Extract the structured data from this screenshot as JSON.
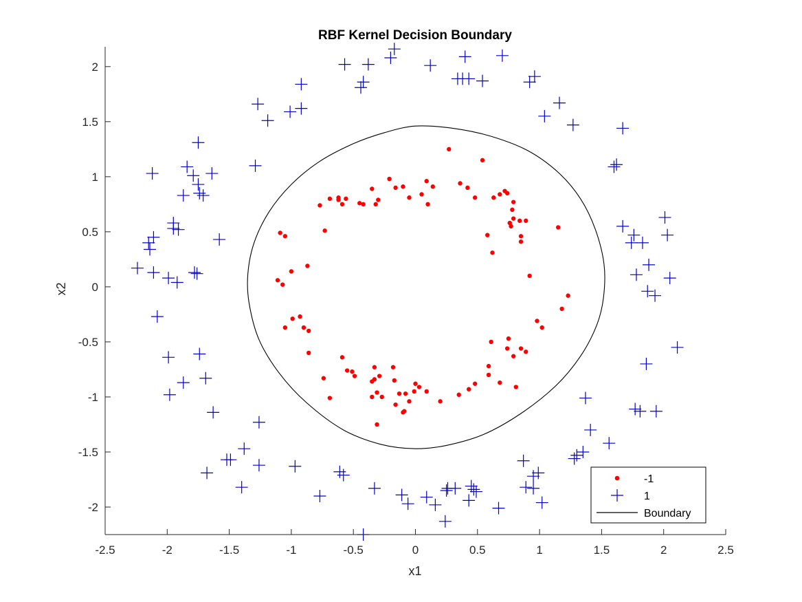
{
  "chart_data": {
    "type": "scatter",
    "title": "RBF Kernel Decision Boundary",
    "xlabel": "x1",
    "ylabel": "x2",
    "xlim": [
      -2.5,
      2.5
    ],
    "ylim": [
      -2.25,
      2.18
    ],
    "xticks": [
      "-2.5",
      "-2",
      "-1.5",
      "-1",
      "-0.5",
      "0",
      "0.5",
      "1",
      "1.5",
      "2",
      "2.5"
    ],
    "xtick_values": [
      -2.5,
      -2,
      -1.5,
      -1,
      -0.5,
      0,
      0.5,
      1,
      1.5,
      2,
      2.5
    ],
    "yticks": [
      "-2",
      "-1.5",
      "-1",
      "-0.5",
      "0",
      "0.5",
      "1",
      "1.5",
      "2"
    ],
    "ytick_values": [
      -2,
      -1.5,
      -1,
      -0.5,
      0,
      0.5,
      1,
      1.5,
      2
    ],
    "grid": false,
    "legend_position": "bottom-right",
    "legend": [
      "-1",
      "1",
      "Boundary"
    ],
    "colors": {
      "neg": "#ff0000",
      "pos": "#0000cc",
      "boundary": "#000000"
    },
    "series": [
      {
        "name": "-1",
        "marker": "dot",
        "points": [
          [
            0.27,
            1.25
          ],
          [
            0.54,
            1.15
          ],
          [
            -0.21,
            0.98
          ],
          [
            -0.35,
            0.89
          ],
          [
            -0.16,
            0.9
          ],
          [
            -0.1,
            0.91
          ],
          [
            0.09,
            0.96
          ],
          [
            0.14,
            0.91
          ],
          [
            0.36,
            0.94
          ],
          [
            0.42,
            0.9
          ],
          [
            0.48,
            0.81
          ],
          [
            0.63,
            0.81
          ],
          [
            0.68,
            0.84
          ],
          [
            0.74,
            0.85
          ],
          [
            0.72,
            0.87
          ],
          [
            0.79,
            0.77
          ],
          [
            0.78,
            0.7
          ],
          [
            0.79,
            0.62
          ],
          [
            0.84,
            0.6
          ],
          [
            0.89,
            0.6
          ],
          [
            0.76,
            0.58
          ],
          [
            0.77,
            0.55
          ],
          [
            0.85,
            0.46
          ],
          [
            0.85,
            0.41
          ],
          [
            0.58,
            0.47
          ],
          [
            0.62,
            0.31
          ],
          [
            1.15,
            0.54
          ],
          [
            0.92,
            0.1
          ],
          [
            1.23,
            -0.08
          ],
          [
            1.18,
            -0.2
          ],
          [
            0.98,
            -0.31
          ],
          [
            1.02,
            -0.37
          ],
          [
            0.75,
            -0.47
          ],
          [
            0.74,
            -0.56
          ],
          [
            0.79,
            -0.63
          ],
          [
            0.85,
            -0.56
          ],
          [
            0.89,
            -0.59
          ],
          [
            0.61,
            -0.5
          ],
          [
            0.59,
            -0.72
          ],
          [
            0.59,
            -0.8
          ],
          [
            0.81,
            -0.91
          ],
          [
            0.48,
            -0.88
          ],
          [
            0.43,
            -0.93
          ],
          [
            0.35,
            -0.98
          ],
          [
            0.2,
            -1.04
          ],
          [
            0.09,
            -0.95
          ],
          [
            0.03,
            -0.91
          ],
          [
            0.0,
            -0.88
          ],
          [
            -0.01,
            -0.95
          ],
          [
            -0.05,
            -1.04
          ],
          [
            -0.09,
            -1.13
          ],
          [
            -0.1,
            -1.14
          ],
          [
            -0.16,
            -1.07
          ],
          [
            -0.13,
            -0.97
          ],
          [
            -0.08,
            -0.97
          ],
          [
            -0.17,
            -0.85
          ],
          [
            -0.29,
            -0.81
          ],
          [
            -0.33,
            -0.84
          ],
          [
            -0.35,
            -0.86
          ],
          [
            -0.31,
            -0.96
          ],
          [
            -0.35,
            -1.0
          ],
          [
            -0.31,
            -1.25
          ],
          [
            -0.27,
            -1.0
          ],
          [
            -0.33,
            -0.73
          ],
          [
            -0.18,
            -0.73
          ],
          [
            -0.49,
            -0.81
          ],
          [
            -0.51,
            -0.77
          ],
          [
            -0.55,
            -0.76
          ],
          [
            -0.59,
            -0.64
          ],
          [
            -0.69,
            -1.01
          ],
          [
            -0.74,
            -0.83
          ],
          [
            -0.86,
            -0.6
          ],
          [
            -0.86,
            -0.4
          ],
          [
            -0.9,
            -0.37
          ],
          [
            -0.93,
            -0.27
          ],
          [
            -0.99,
            -0.29
          ],
          [
            -1.05,
            -0.37
          ],
          [
            -1.07,
            0.02
          ],
          [
            -1.0,
            0.14
          ],
          [
            -0.87,
            0.19
          ],
          [
            -1.11,
            0.06
          ],
          [
            -1.09,
            0.49
          ],
          [
            -1.05,
            0.46
          ],
          [
            -0.73,
            0.51
          ],
          [
            -0.77,
            0.74
          ],
          [
            -0.69,
            0.8
          ],
          [
            -0.62,
            0.79
          ],
          [
            -0.59,
            0.75
          ],
          [
            -0.62,
            0.81
          ],
          [
            -0.56,
            0.8
          ],
          [
            -0.42,
            0.75
          ],
          [
            -0.45,
            0.76
          ],
          [
            -0.32,
            0.75
          ],
          [
            -0.3,
            0.79
          ],
          [
            -0.05,
            0.81
          ],
          [
            0.1,
            0.75
          ],
          [
            0.05,
            0.84
          ],
          [
            0.68,
            -0.87
          ]
        ]
      },
      {
        "name": "1",
        "marker": "plus",
        "points": [
          [
            -0.17,
            2.16
          ],
          [
            -0.2,
            2.08
          ],
          [
            -0.38,
            2.02
          ],
          [
            -0.57,
            2.02
          ],
          [
            0.12,
            2.01
          ],
          [
            0.4,
            2.09
          ],
          [
            0.7,
            2.1
          ],
          [
            -0.42,
            1.86
          ],
          [
            -0.44,
            1.81
          ],
          [
            0.34,
            1.89
          ],
          [
            0.38,
            1.89
          ],
          [
            0.43,
            1.89
          ],
          [
            0.54,
            1.87
          ],
          [
            0.92,
            1.86
          ],
          [
            0.96,
            1.91
          ],
          [
            -0.92,
            1.84
          ],
          [
            -0.92,
            1.62
          ],
          [
            -1.01,
            1.59
          ],
          [
            -1.27,
            1.66
          ],
          [
            -1.19,
            1.51
          ],
          [
            1.04,
            1.55
          ],
          [
            1.16,
            1.67
          ],
          [
            1.27,
            1.47
          ],
          [
            1.67,
            1.44
          ],
          [
            -1.29,
            1.1
          ],
          [
            1.6,
            1.09
          ],
          [
            1.62,
            1.11
          ],
          [
            -2.12,
            1.03
          ],
          [
            -1.84,
            1.09
          ],
          [
            -1.79,
            1.01
          ],
          [
            -1.75,
            0.93
          ],
          [
            -1.74,
            0.85
          ],
          [
            -1.71,
            0.83
          ],
          [
            -1.64,
            1.03
          ],
          [
            -1.87,
            0.83
          ],
          [
            -1.75,
            1.31
          ],
          [
            -1.95,
            0.58
          ],
          [
            -1.95,
            0.53
          ],
          [
            -1.91,
            0.52
          ],
          [
            -1.58,
            0.43
          ],
          [
            -2.11,
            0.45
          ],
          [
            -2.15,
            0.4
          ],
          [
            -2.14,
            0.34
          ],
          [
            -2.24,
            0.17
          ],
          [
            -2.11,
            0.13
          ],
          [
            -1.78,
            0.13
          ],
          [
            -1.76,
            0.12
          ],
          [
            -1.99,
            0.08
          ],
          [
            -1.92,
            0.04
          ],
          [
            -2.08,
            -0.27
          ],
          [
            1.67,
            0.55
          ],
          [
            1.76,
            0.47
          ],
          [
            1.74,
            0.4
          ],
          [
            1.83,
            0.4
          ],
          [
            1.88,
            0.2
          ],
          [
            1.78,
            0.11
          ],
          [
            2.01,
            0.63
          ],
          [
            2.03,
            0.47
          ],
          [
            2.05,
            0.08
          ],
          [
            1.87,
            -0.04
          ],
          [
            1.93,
            -0.08
          ],
          [
            2.11,
            -0.55
          ],
          [
            1.86,
            -0.7
          ],
          [
            -1.99,
            -0.64
          ],
          [
            -1.74,
            -0.61
          ],
          [
            -1.69,
            -0.83
          ],
          [
            -1.87,
            -0.87
          ],
          [
            -1.98,
            -0.98
          ],
          [
            -1.63,
            -1.14
          ],
          [
            -1.26,
            -1.23
          ],
          [
            1.37,
            -1.01
          ],
          [
            1.77,
            -1.11
          ],
          [
            1.81,
            -1.13
          ],
          [
            1.94,
            -1.13
          ],
          [
            1.41,
            -1.3
          ],
          [
            1.56,
            -1.42
          ],
          [
            1.35,
            -1.5
          ],
          [
            1.3,
            -1.53
          ],
          [
            1.28,
            -1.56
          ],
          [
            -1.38,
            -1.47
          ],
          [
            -1.52,
            -1.57
          ],
          [
            -1.49,
            -1.57
          ],
          [
            -1.26,
            -1.62
          ],
          [
            -0.97,
            -1.63
          ],
          [
            -1.68,
            -1.69
          ],
          [
            -0.61,
            -1.68
          ],
          [
            -0.58,
            -1.71
          ],
          [
            0.87,
            -1.58
          ],
          [
            0.95,
            -1.72
          ],
          [
            0.99,
            -1.69
          ],
          [
            0.89,
            -1.82
          ],
          [
            -1.4,
            -1.82
          ],
          [
            -0.77,
            -1.9
          ],
          [
            -0.33,
            -1.83
          ],
          [
            -0.11,
            -1.89
          ],
          [
            -0.06,
            -1.97
          ],
          [
            0.09,
            -1.91
          ],
          [
            0.16,
            -1.98
          ],
          [
            0.25,
            -1.85
          ],
          [
            0.26,
            -1.83
          ],
          [
            0.32,
            -1.83
          ],
          [
            0.45,
            -1.81
          ],
          [
            0.47,
            -1.84
          ],
          [
            0.49,
            -1.86
          ],
          [
            0.43,
            -1.94
          ],
          [
            0.67,
            -2.01
          ],
          [
            0.95,
            -1.83
          ],
          [
            1.02,
            -1.96
          ],
          [
            0.24,
            -2.13
          ],
          [
            -0.42,
            -2.25
          ]
        ]
      },
      {
        "name": "Boundary",
        "marker": "line",
        "points": [
          [
            0,
            1.46
          ],
          [
            0.3,
            1.44
          ],
          [
            0.6,
            1.37
          ],
          [
            0.9,
            1.24
          ],
          [
            1.15,
            1.04
          ],
          [
            1.33,
            0.8
          ],
          [
            1.45,
            0.52
          ],
          [
            1.52,
            0.2
          ],
          [
            1.515,
            -0.1
          ],
          [
            1.46,
            -0.35
          ],
          [
            1.33,
            -0.63
          ],
          [
            1.13,
            -0.9
          ],
          [
            0.85,
            -1.15
          ],
          [
            0.55,
            -1.34
          ],
          [
            0.25,
            -1.44
          ],
          [
            0,
            -1.47
          ],
          [
            -0.28,
            -1.43
          ],
          [
            -0.58,
            -1.3
          ],
          [
            -0.88,
            -1.05
          ],
          [
            -1.1,
            -0.78
          ],
          [
            -1.26,
            -0.48
          ],
          [
            -1.34,
            -0.15
          ],
          [
            -1.35,
            0.12
          ],
          [
            -1.3,
            0.4
          ],
          [
            -1.18,
            0.68
          ],
          [
            -1.0,
            0.93
          ],
          [
            -0.77,
            1.14
          ],
          [
            -0.5,
            1.3
          ],
          [
            -0.25,
            1.4
          ],
          [
            0,
            1.46
          ]
        ]
      }
    ]
  }
}
